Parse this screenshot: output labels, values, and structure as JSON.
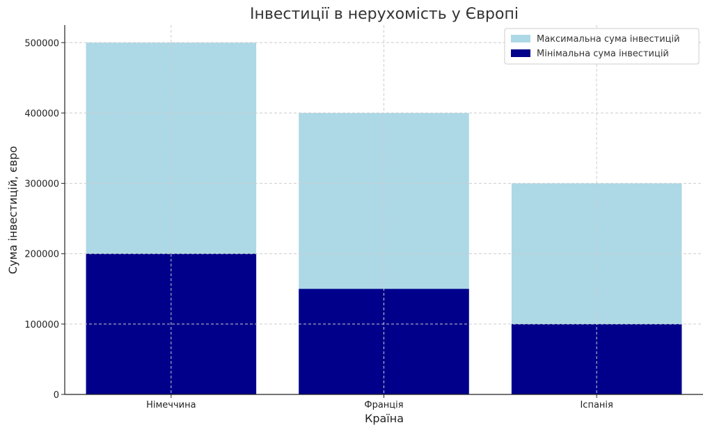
{
  "chart_data": {
    "type": "bar",
    "stacked_overlay": true,
    "title": "Інвестиції в нерухомість у Європі",
    "xlabel": "Країна",
    "ylabel": "Сума інвестицій, євро",
    "categories": [
      "Німеччина",
      "Франція",
      "Іспанія"
    ],
    "series": [
      {
        "name": "Максимальна сума інвестицій",
        "values": [
          500000,
          400000,
          300000
        ],
        "color": "#add8e6"
      },
      {
        "name": "Мінімальна сума інвестицій",
        "values": [
          200000,
          150000,
          100000
        ],
        "color": "#00008b"
      }
    ],
    "ylim": [
      0,
      525000
    ],
    "yticks": [
      0,
      100000,
      200000,
      300000,
      400000,
      500000
    ],
    "ytick_labels": [
      "0",
      "100000",
      "200000",
      "300000",
      "400000",
      "500000"
    ],
    "grid": true,
    "legend_position": "top-right"
  }
}
